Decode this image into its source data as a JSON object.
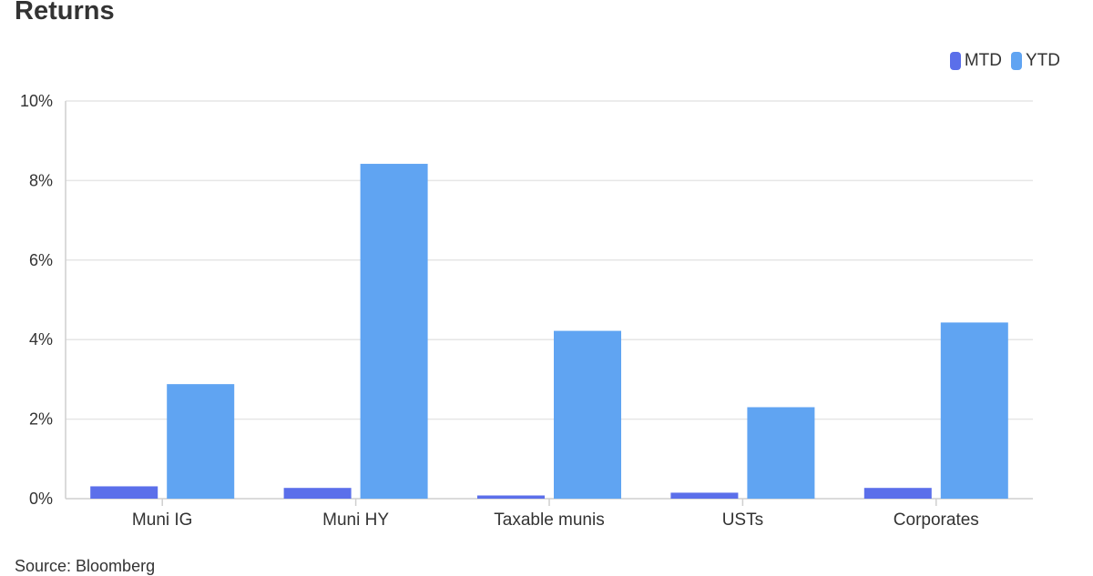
{
  "chart_data": {
    "type": "bar",
    "title": "Returns",
    "categories": [
      "Muni IG",
      "Muni HY",
      "Taxable munis",
      "USTs",
      "Corporates"
    ],
    "series": [
      {
        "name": "MTD",
        "values": [
          0.31,
          0.27,
          0.08,
          0.15,
          0.27
        ],
        "color": "#5b6fea"
      },
      {
        "name": "YTD",
        "values": [
          2.88,
          8.42,
          4.22,
          2.3,
          4.43
        ],
        "color": "#60a4f2"
      }
    ],
    "ylim": [
      0,
      10
    ],
    "yticks": [
      "0%",
      "2%",
      "4%",
      "6%",
      "8%",
      "10%"
    ],
    "grid": true,
    "legend_position": "top-right"
  },
  "source": "Source: Bloomberg"
}
